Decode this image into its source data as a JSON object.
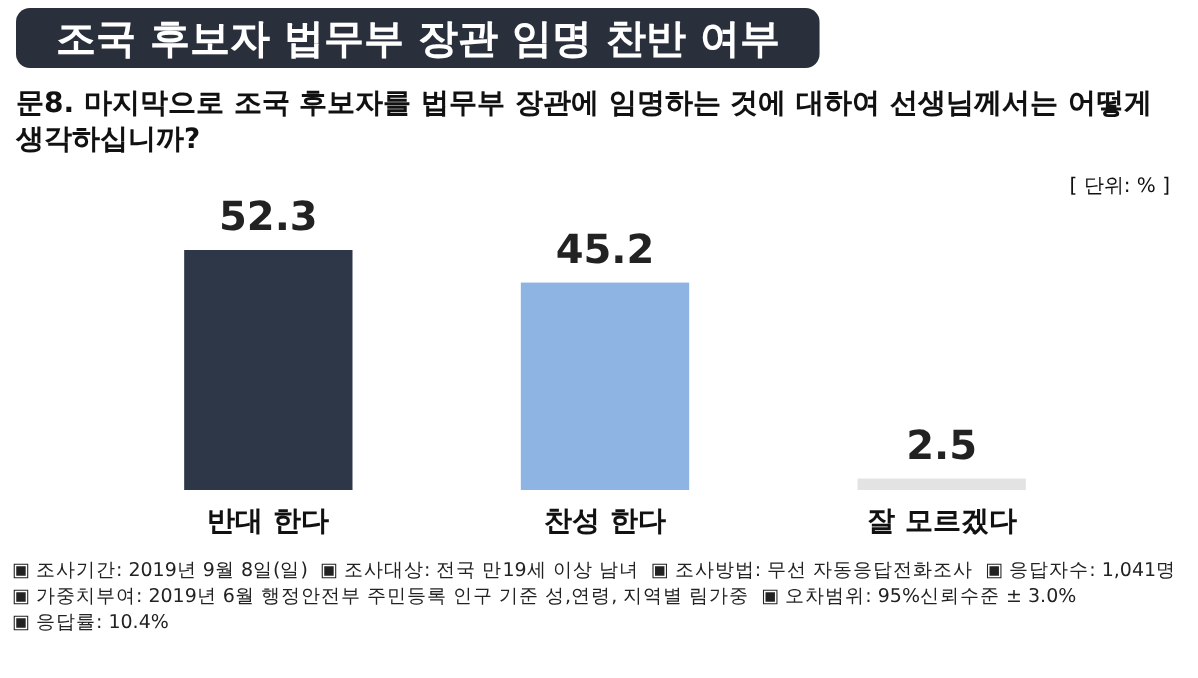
{
  "chart_data": {
    "type": "bar",
    "title": "조국 후보자 법무부 장관 임명 찬반 여부",
    "subtitle": "문8. 마지막으로 조국 후보자를 법무부 장관에 임명하는 것에 대하여 선생님께서는 어떻게 생각하십니까?",
    "ylabel": "[ 단위: % ]",
    "categories": [
      "반대 한다",
      "찬성 한다",
      "잘 모르겠다"
    ],
    "values": [
      52.3,
      45.2,
      2.5
    ],
    "colors": [
      "#2e3747",
      "#8db4e3",
      "#e3e3e3"
    ],
    "data_labels": true,
    "annotations": [
      "▣ 조사기간: 2019년 9월 8일(일)",
      "▣ 조사대상: 전국 만19세 이상 남녀",
      "▣ 조사방법: 무선 자동응답전화조사",
      "▣ 응답자수: 1,041명",
      "▣ 가중치부여: 2019년 6월 행정안전부 주민등록 인구 기준 성,연령, 지역별 림가중",
      "▣ 오차범위: 95%신뢰수준 ± 3.0%",
      "▣ 응답률: 10.4%"
    ]
  }
}
